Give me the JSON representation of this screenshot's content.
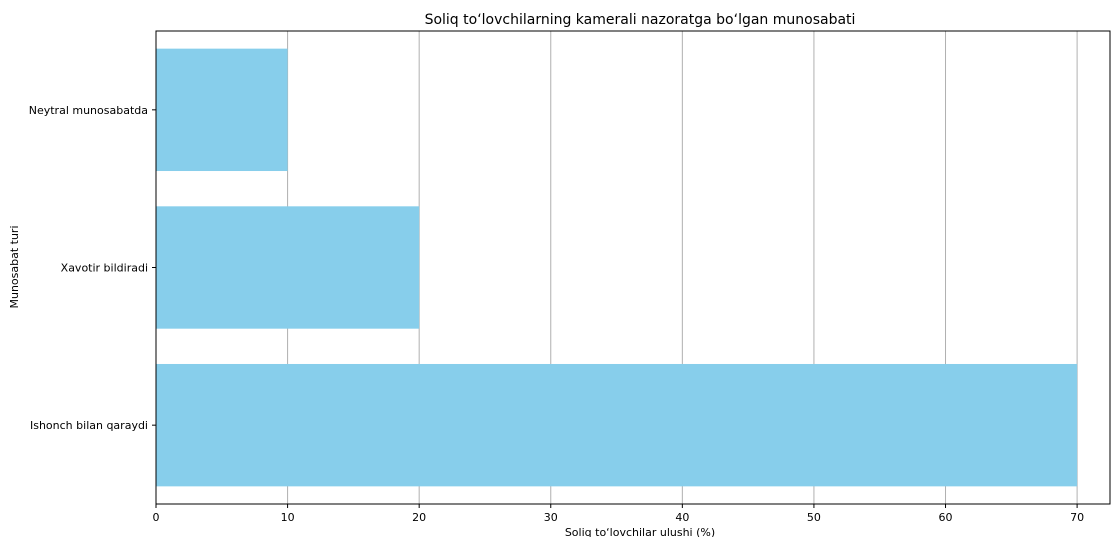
{
  "chart_data": {
    "type": "bar",
    "orientation": "horizontal",
    "title": "Soliq to‘lovchilarning kamerali nazoratga bo‘lgan munosabati",
    "xlabel": "Soliq to‘lovchilar ulushi (%)",
    "ylabel": "Munosabat turi",
    "categories": [
      "Ishonch bilan qaraydi",
      "Xavotir bildiradi",
      "Neytral munosabatda"
    ],
    "values": [
      70,
      20,
      10
    ],
    "xlim": [
      0,
      72.5
    ],
    "xticks": [
      0,
      10,
      20,
      30,
      40,
      50,
      60,
      70
    ],
    "grid": "x",
    "colors": {
      "bar": "#87ceeb",
      "grid": "#b0b0b0",
      "axis": "#000000"
    }
  }
}
